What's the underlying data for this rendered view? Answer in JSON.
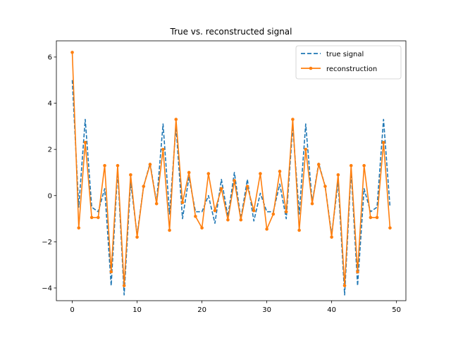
{
  "chart_data": {
    "type": "line",
    "title": "True vs. reconstructed signal",
    "xlabel": "",
    "ylabel": "",
    "xlim": [
      -2.45,
      51.45
    ],
    "ylim": [
      -4.55,
      6.7
    ],
    "xticks": [
      0,
      10,
      20,
      30,
      40,
      50
    ],
    "yticks": [
      -4,
      -2,
      0,
      2,
      4,
      6
    ],
    "ytick_labels": [
      "−4",
      "−2",
      "0",
      "2",
      "4",
      "6"
    ],
    "legend_position": "top-right",
    "grid": false,
    "x": [
      0,
      1,
      2,
      3,
      4,
      5,
      6,
      7,
      8,
      9,
      10,
      11,
      12,
      13,
      14,
      15,
      16,
      17,
      18,
      19,
      20,
      21,
      22,
      23,
      24,
      25,
      26,
      27,
      28,
      29,
      30,
      31,
      32,
      33,
      34,
      35,
      36,
      37,
      38,
      39,
      40,
      41,
      42,
      43,
      44,
      45,
      46,
      47,
      48,
      49
    ],
    "series": [
      {
        "name": "true signal",
        "style": "dashed",
        "color": "#1f77b4",
        "values": [
          5.0,
          -0.5,
          3.3,
          -0.5,
          -0.7,
          0.3,
          -3.9,
          1.1,
          -4.3,
          0.6,
          -1.7,
          0.4,
          1.4,
          -0.3,
          3.1,
          -0.8,
          3.0,
          -1.0,
          0.8,
          -0.7,
          -0.7,
          0.0,
          -1.2,
          0.7,
          -0.9,
          1.0,
          -1.0,
          0.7,
          -1.1,
          0.1,
          -0.7,
          -0.7,
          0.5,
          -1.0,
          3.0,
          -0.8,
          3.1,
          -0.3,
          1.4,
          0.4,
          -1.7,
          0.6,
          -4.3,
          1.1,
          -3.9,
          0.3,
          -0.7,
          -0.5,
          3.3,
          -0.5
        ]
      },
      {
        "name": "reconstruction",
        "style": "solid-markers",
        "color": "#ff7f0e",
        "values": [
          6.2,
          -1.4,
          2.3,
          -0.95,
          -0.95,
          1.3,
          -3.3,
          1.3,
          -3.9,
          0.9,
          -1.8,
          0.4,
          1.35,
          -0.35,
          2.0,
          -1.5,
          3.3,
          -0.3,
          1.0,
          -0.9,
          -1.4,
          0.95,
          -0.65,
          0.3,
          -1.05,
          0.65,
          -1.05,
          0.4,
          -0.65,
          0.95,
          -1.45,
          -0.8,
          1.05,
          -0.7,
          3.3,
          -1.5,
          2.0,
          -0.35,
          1.35,
          0.4,
          -1.8,
          0.9,
          -3.9,
          1.3,
          -3.3,
          1.3,
          -0.95,
          -0.95,
          2.3,
          -1.4
        ]
      }
    ]
  }
}
